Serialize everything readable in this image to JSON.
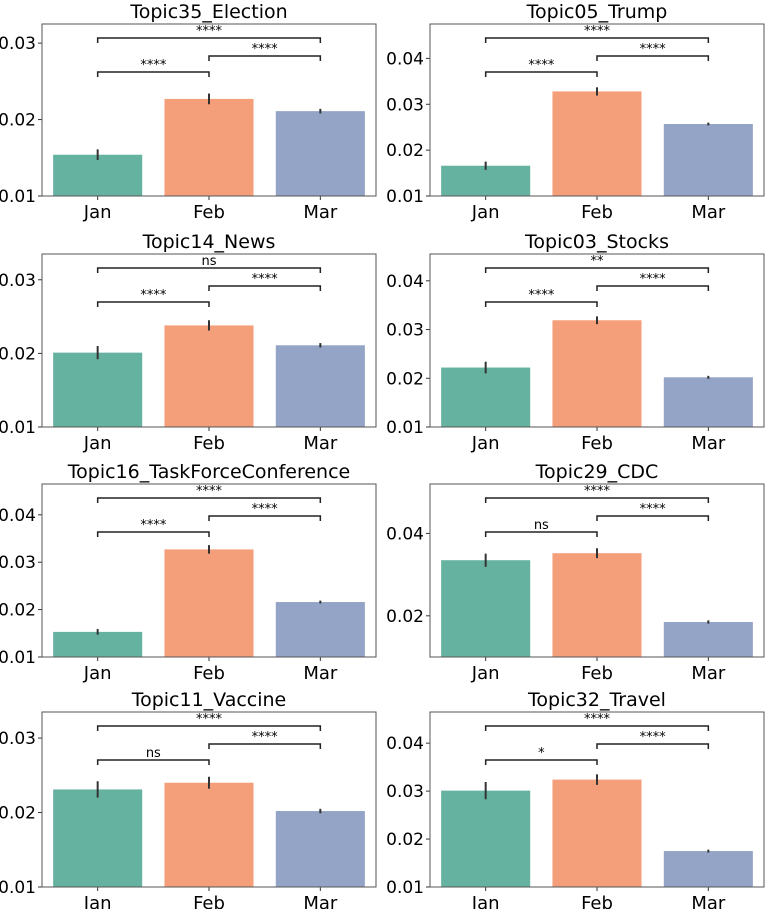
{
  "colors": {
    "jan": "#66b2a1",
    "feb": "#f59e7a",
    "mar": "#94a4c6",
    "frame": "#555555"
  },
  "chart_data": [
    {
      "type": "bar",
      "title": "Topic35_Election",
      "categories": [
        "Jan",
        "Feb",
        "Mar"
      ],
      "values": [
        0.0154,
        0.0227,
        0.0211
      ],
      "errors": [
        0.0007,
        0.0007,
        0.0003
      ],
      "ylim": [
        0.01,
        0.0325
      ],
      "yticks": [
        0.01,
        0.02,
        0.03
      ],
      "ytick_labels": [
        "0.01",
        "0.02",
        "0.03"
      ],
      "annotations": [
        {
          "from": 0,
          "to": 1,
          "label": "****",
          "level": 1
        },
        {
          "from": 1,
          "to": 2,
          "label": "****",
          "level": 2
        },
        {
          "from": 0,
          "to": 2,
          "label": "****",
          "level": 3
        }
      ]
    },
    {
      "type": "bar",
      "title": "Topic05_Trump",
      "categories": [
        "Jan",
        "Feb",
        "Mar"
      ],
      "values": [
        0.0166,
        0.0328,
        0.0257
      ],
      "errors": [
        0.0009,
        0.0009,
        0.0003
      ],
      "ylim": [
        0.01,
        0.0475
      ],
      "yticks": [
        0.01,
        0.02,
        0.03,
        0.04
      ],
      "ytick_labels": [
        "0.01",
        "0.02",
        "0.03",
        "0.04"
      ],
      "annotations": [
        {
          "from": 0,
          "to": 1,
          "label": "****",
          "level": 1
        },
        {
          "from": 1,
          "to": 2,
          "label": "****",
          "level": 2
        },
        {
          "from": 0,
          "to": 2,
          "label": "****",
          "level": 3
        }
      ]
    },
    {
      "type": "bar",
      "title": "Topic14_News",
      "categories": [
        "Jan",
        "Feb",
        "Mar"
      ],
      "values": [
        0.0201,
        0.0238,
        0.0211
      ],
      "errors": [
        0.0009,
        0.0007,
        0.0003
      ],
      "ylim": [
        0.01,
        0.0335
      ],
      "yticks": [
        0.01,
        0.02,
        0.03
      ],
      "ytick_labels": [
        "0.01",
        "0.02",
        "0.03"
      ],
      "annotations": [
        {
          "from": 0,
          "to": 1,
          "label": "****",
          "level": 1
        },
        {
          "from": 1,
          "to": 2,
          "label": "****",
          "level": 2
        },
        {
          "from": 0,
          "to": 2,
          "label": "ns",
          "level": 3
        }
      ]
    },
    {
      "type": "bar",
      "title": "Topic03_Stocks",
      "categories": [
        "Jan",
        "Feb",
        "Mar"
      ],
      "values": [
        0.0222,
        0.0319,
        0.0202
      ],
      "errors": [
        0.0012,
        0.0008,
        0.0003
      ],
      "ylim": [
        0.01,
        0.0455
      ],
      "yticks": [
        0.01,
        0.02,
        0.03,
        0.04
      ],
      "ytick_labels": [
        "0.01",
        "0.02",
        "0.03",
        "0.04"
      ],
      "annotations": [
        {
          "from": 0,
          "to": 1,
          "label": "****",
          "level": 1
        },
        {
          "from": 1,
          "to": 2,
          "label": "****",
          "level": 2
        },
        {
          "from": 0,
          "to": 2,
          "label": "**",
          "level": 3
        }
      ]
    },
    {
      "type": "bar",
      "title": "Topic16_TaskForceConference",
      "categories": [
        "Jan",
        "Feb",
        "Mar"
      ],
      "values": [
        0.0153,
        0.0327,
        0.0216
      ],
      "errors": [
        0.0006,
        0.0009,
        0.0003
      ],
      "ylim": [
        0.01,
        0.0465
      ],
      "yticks": [
        0.01,
        0.02,
        0.03,
        0.04
      ],
      "ytick_labels": [
        "0.01",
        "0.02",
        "0.03",
        "0.04"
      ],
      "annotations": [
        {
          "from": 0,
          "to": 1,
          "label": "****",
          "level": 1
        },
        {
          "from": 1,
          "to": 2,
          "label": "****",
          "level": 2
        },
        {
          "from": 0,
          "to": 2,
          "label": "****",
          "level": 3
        }
      ]
    },
    {
      "type": "bar",
      "title": "Topic29_CDC",
      "categories": [
        "Jan",
        "Feb",
        "Mar"
      ],
      "values": [
        0.0335,
        0.0352,
        0.0185
      ],
      "errors": [
        0.0016,
        0.0012,
        0.0004
      ],
      "ylim": [
        0.01,
        0.052
      ],
      "yticks": [
        0.02,
        0.04
      ],
      "ytick_labels": [
        "0.02",
        "0.04"
      ],
      "annotations": [
        {
          "from": 0,
          "to": 1,
          "label": "ns",
          "level": 1
        },
        {
          "from": 1,
          "to": 2,
          "label": "****",
          "level": 2
        },
        {
          "from": 0,
          "to": 2,
          "label": "****",
          "level": 3
        }
      ]
    },
    {
      "type": "bar",
      "title": "Topic11_Vaccine",
      "categories": [
        "Jan",
        "Feb",
        "Mar"
      ],
      "values": [
        0.0231,
        0.024,
        0.0202
      ],
      "errors": [
        0.0011,
        0.0008,
        0.0003
      ],
      "ylim": [
        0.01,
        0.0335
      ],
      "yticks": [
        0.01,
        0.02,
        0.03
      ],
      "ytick_labels": [
        "0.01",
        "0.02",
        "0.03"
      ],
      "annotations": [
        {
          "from": 0,
          "to": 1,
          "label": "ns",
          "level": 1
        },
        {
          "from": 1,
          "to": 2,
          "label": "****",
          "level": 2
        },
        {
          "from": 0,
          "to": 2,
          "label": "****",
          "level": 3
        }
      ]
    },
    {
      "type": "bar",
      "title": "Topic32_Travel",
      "categories": [
        "Jan",
        "Feb",
        "Mar"
      ],
      "values": [
        0.0301,
        0.0324,
        0.0175
      ],
      "errors": [
        0.0018,
        0.0011,
        0.0003
      ],
      "ylim": [
        0.01,
        0.0465
      ],
      "yticks": [
        0.01,
        0.02,
        0.03,
        0.04
      ],
      "ytick_labels": [
        "0.01",
        "0.02",
        "0.03",
        "0.04"
      ],
      "annotations": [
        {
          "from": 0,
          "to": 1,
          "label": "*",
          "level": 1
        },
        {
          "from": 1,
          "to": 2,
          "label": "****",
          "level": 2
        },
        {
          "from": 0,
          "to": 2,
          "label": "****",
          "level": 3
        }
      ]
    }
  ]
}
